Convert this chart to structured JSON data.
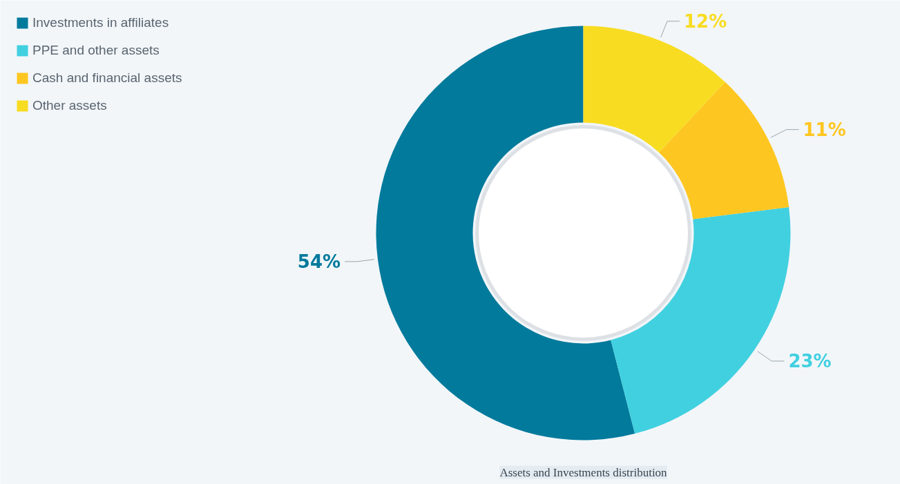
{
  "chart_data": {
    "type": "donut",
    "categories": [
      "Investments in affiliates",
      "PPE and other assets",
      "Cash and financial assets",
      "Other assets"
    ],
    "values": [
      54,
      23,
      11,
      12
    ],
    "colors": [
      "#027a9c",
      "#41d0e0",
      "#fec620",
      "#f8dc22"
    ],
    "value_labels": [
      "54%",
      "23%",
      "11%",
      "12%"
    ],
    "legend": "top left",
    "annotations": [
      "Assets and Investments distribution"
    ]
  }
}
